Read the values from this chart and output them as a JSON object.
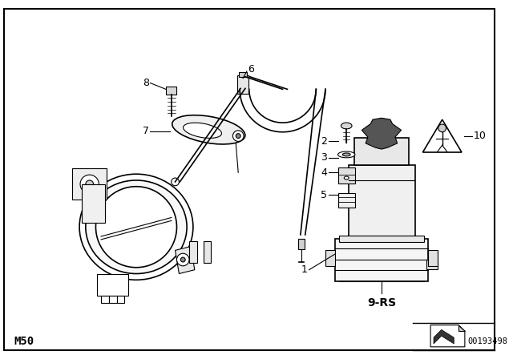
{
  "bg_color": "#ffffff",
  "border_color": "#000000",
  "text_color": "#000000",
  "bottom_left_label": "M50",
  "bottom_right_label": "00193498",
  "fig_width": 6.4,
  "fig_height": 4.48,
  "dpi": 100
}
